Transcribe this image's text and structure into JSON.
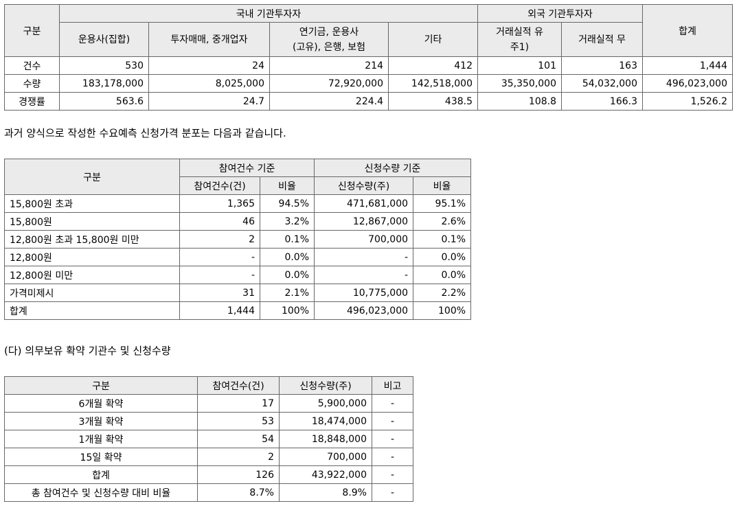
{
  "table1": {
    "header": {
      "group": "구분",
      "domestic": "국내 기관투자자",
      "foreign": "외국 기관투자자",
      "total": "합계",
      "columns": [
        "운용사(집합)",
        "투자매매, 중개업자",
        "연기금, 운용사\n(고유), 은행, 보험",
        "기타",
        "거래실적 유\n주1)",
        "거래실적 무"
      ]
    },
    "rows": [
      [
        "건수",
        "530",
        "24",
        "214",
        "412",
        "101",
        "163",
        "1,444"
      ],
      [
        "수량",
        "183,178,000",
        "8,025,000",
        "72,920,000",
        "142,518,000",
        "35,350,000",
        "54,032,000",
        "496,023,000"
      ],
      [
        "경쟁률",
        "563.6",
        "24.7",
        "224.4",
        "438.5",
        "108.8",
        "166.3",
        "1,526.2"
      ]
    ]
  },
  "note1": "과거 양식으로 작성한 수요예측 신청가격 분포는 다음과 같습니다.",
  "table2": {
    "header": {
      "group": "구분",
      "count_basis": "참여건수 기준",
      "qty_basis": "신청수량 기준",
      "columns": [
        "참여건수(건)",
        "비율",
        "신청수량(주)",
        "비율"
      ]
    },
    "rows": [
      [
        "15,800원 초과",
        "1,365",
        "94.5%",
        "471,681,000",
        "95.1%"
      ],
      [
        "15,800원",
        "46",
        "3.2%",
        "12,867,000",
        "2.6%"
      ],
      [
        "12,800원 초과 15,800원 미만",
        "2",
        "0.1%",
        "700,000",
        "0.1%"
      ],
      [
        "12,800원",
        "-",
        "0.0%",
        "-",
        "0.0%"
      ],
      [
        "12,800원 미만",
        "-",
        "0.0%",
        "-",
        "0.0%"
      ],
      [
        "가격미제시",
        "31",
        "2.1%",
        "10,775,000",
        "2.2%"
      ],
      [
        "합계",
        "1,444",
        "100%",
        "496,023,000",
        "100%"
      ]
    ]
  },
  "note2": "(다) 의무보유 확약 기관수 및 신청수량",
  "table3": {
    "header": [
      "구분",
      "참여건수(건)",
      "신청수량(주)",
      "비고"
    ],
    "rows": [
      [
        "6개월 확약",
        "17",
        "5,900,000",
        "-"
      ],
      [
        "3개월 확약",
        "53",
        "18,474,000",
        "-"
      ],
      [
        "1개월 확약",
        "54",
        "18,848,000",
        "-"
      ],
      [
        "15일 확약",
        "2",
        "700,000",
        "-"
      ],
      [
        "합계",
        "126",
        "43,922,000",
        "-"
      ],
      [
        "총 참여건수 및 신청수량 대비 비율",
        "8.7%",
        "8.9%",
        "-"
      ]
    ]
  }
}
